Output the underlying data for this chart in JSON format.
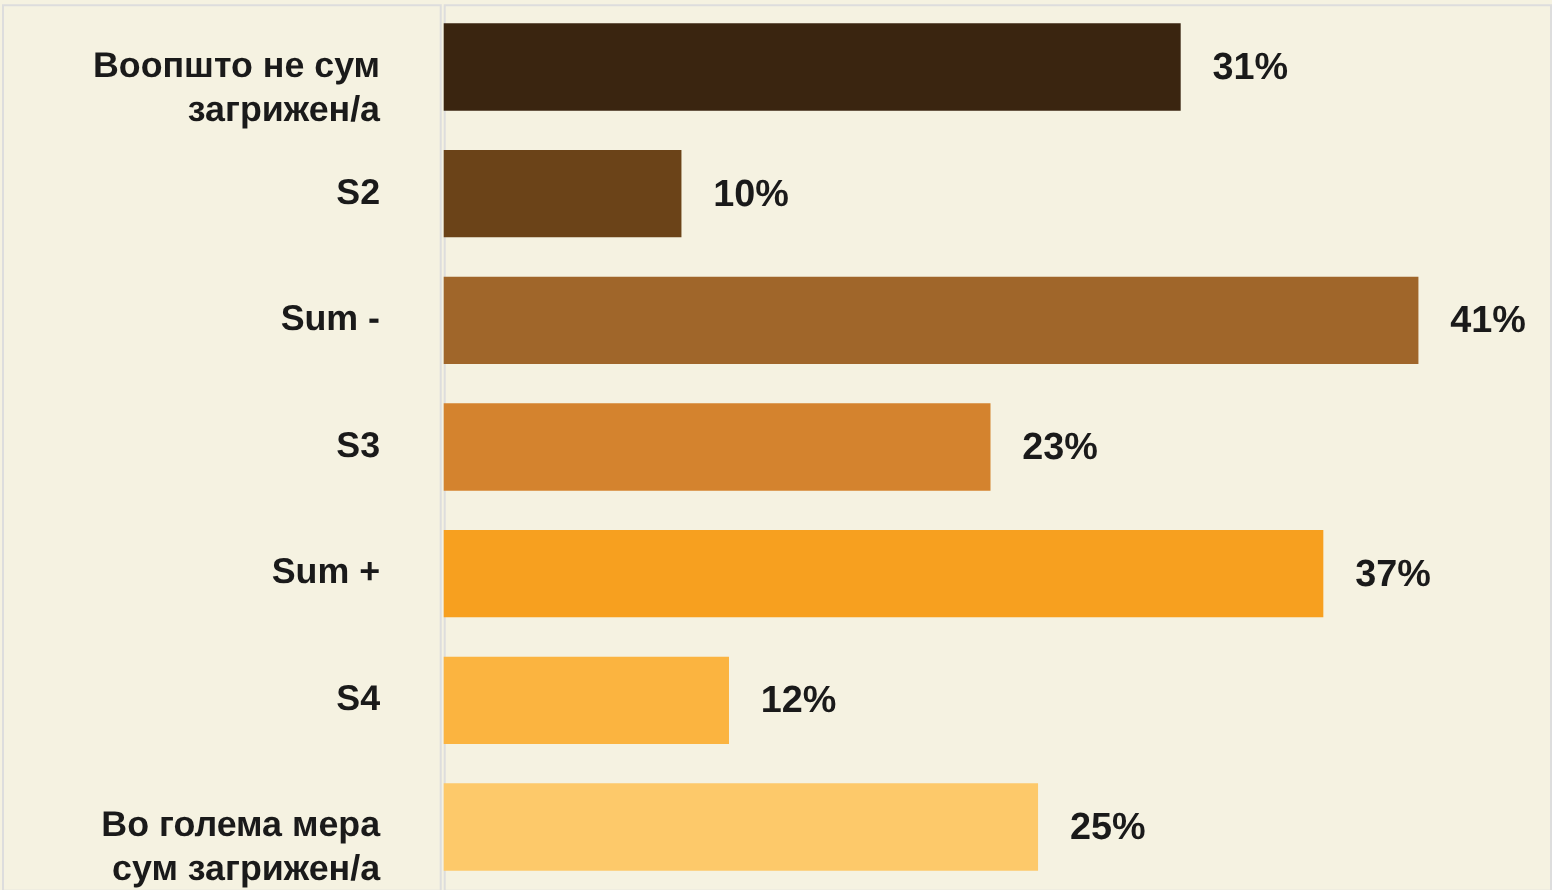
{
  "chart_data": {
    "type": "bar",
    "orientation": "horizontal",
    "categories": [
      "Воопшто не сум\nзагрижен/а",
      "S2",
      "Sum -",
      "S3",
      "Sum +",
      "S4",
      "Во голема мера\nсум загрижен/а"
    ],
    "values": [
      31,
      10,
      41,
      23,
      37,
      12,
      25
    ],
    "value_labels": [
      "31%",
      "10%",
      "41%",
      "23%",
      "37%",
      "12%",
      "25%"
    ],
    "colors": [
      "#3a2510",
      "#6b4318",
      "#a0662a",
      "#d4832e",
      "#f7a01f",
      "#fbb440",
      "#fdc96a"
    ]
  }
}
